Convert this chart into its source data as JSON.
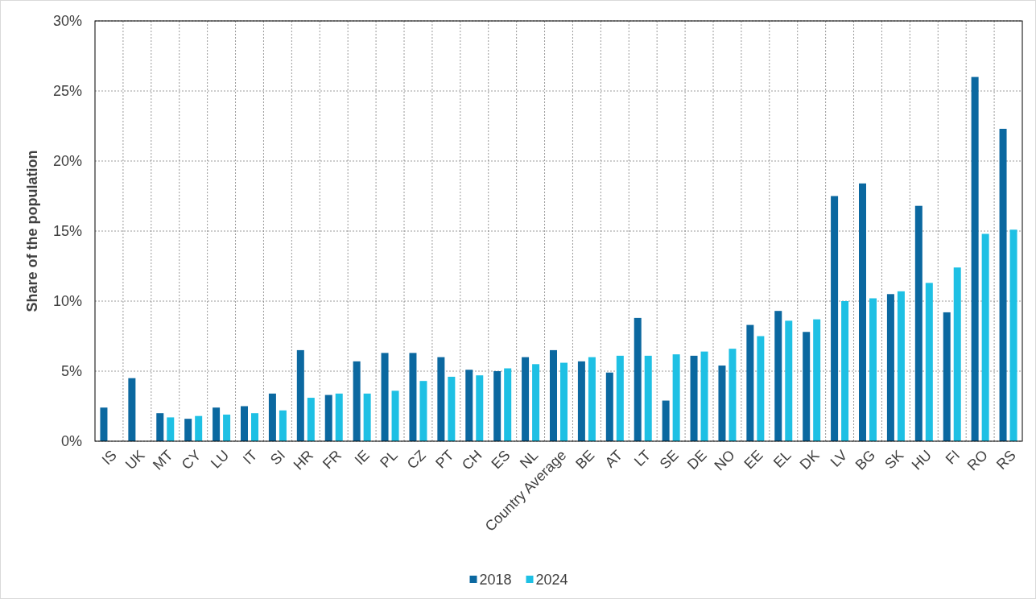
{
  "chart_data": {
    "type": "bar",
    "ylabel": "Share of the population",
    "categories": [
      "IS",
      "UK",
      "MT",
      "CY",
      "LU",
      "IT",
      "SI",
      "HR",
      "FR",
      "IE",
      "PL",
      "CZ",
      "PT",
      "CH",
      "ES",
      "NL",
      "Country Average",
      "BE",
      "AT",
      "LT",
      "SE",
      "DE",
      "NO",
      "EE",
      "EL",
      "DK",
      "LV",
      "BG",
      "SK",
      "HU",
      "FI",
      "RO",
      "RS"
    ],
    "series": [
      {
        "name": "2018",
        "color": "#0b68a0",
        "values": [
          2.4,
          4.5,
          2.0,
          1.6,
          2.4,
          2.5,
          3.4,
          6.5,
          3.3,
          5.7,
          6.3,
          6.3,
          6.0,
          5.1,
          5.0,
          6.0,
          6.5,
          5.7,
          4.9,
          8.8,
          2.9,
          6.1,
          5.4,
          8.3,
          9.3,
          7.8,
          17.5,
          18.4,
          10.5,
          16.8,
          9.2,
          26.0,
          22.3
        ]
      },
      {
        "name": "2024",
        "color": "#1ec0e4",
        "values": [
          null,
          null,
          1.7,
          1.8,
          1.9,
          2.0,
          2.2,
          3.1,
          3.4,
          3.4,
          3.6,
          4.3,
          4.6,
          4.7,
          5.2,
          5.5,
          5.6,
          6.0,
          6.1,
          6.1,
          6.2,
          6.4,
          6.6,
          7.5,
          8.6,
          8.7,
          10.0,
          10.2,
          10.7,
          11.3,
          12.4,
          14.8,
          15.1
        ]
      }
    ],
    "ylim": [
      0,
      30
    ],
    "yticks": [
      {
        "value": 0,
        "label": "0%"
      },
      {
        "value": 5,
        "label": "5%"
      },
      {
        "value": 10,
        "label": "10%"
      },
      {
        "value": 15,
        "label": "15%"
      },
      {
        "value": 20,
        "label": "20%"
      },
      {
        "value": 25,
        "label": "25%"
      },
      {
        "value": 30,
        "label": "30%"
      }
    ],
    "grid": true,
    "legend": "bottom"
  }
}
